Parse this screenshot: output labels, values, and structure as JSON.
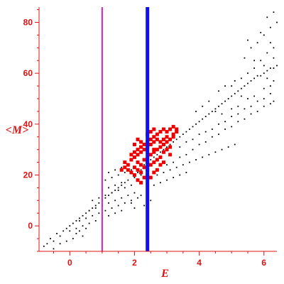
{
  "chart_data": {
    "type": "scatter",
    "title": "",
    "xlabel": "E",
    "ylabel": "<M>",
    "xlim": [
      -0.95,
      6.4
    ],
    "ylim": [
      -10,
      86
    ],
    "x_ticks": [
      "0",
      "2",
      "4",
      "6"
    ],
    "y_ticks": [
      "0",
      "20",
      "40",
      "60",
      "80"
    ],
    "axis_color": "#e01010",
    "grid": false,
    "vertical_lines": [
      {
        "name": "",
        "x": 1.0,
        "color": "#cc22cc",
        "width": "thin"
      },
      {
        "name": "",
        "x": 2.4,
        "color": "#1010ee",
        "width": "thick"
      }
    ],
    "series": [
      {
        "name": "",
        "color": "#000000",
        "marker": "small-dot",
        "points": [
          [
            -0.8,
            -8
          ],
          [
            -0.7,
            -7
          ],
          [
            -0.6,
            -5
          ],
          [
            -0.5,
            -6
          ],
          [
            -0.4,
            -3
          ],
          [
            -0.3,
            -4
          ],
          [
            -0.2,
            -2
          ],
          [
            -0.1,
            -1
          ],
          [
            -0.5,
            -9
          ],
          [
            -0.3,
            -7
          ],
          [
            -0.1,
            -6
          ],
          [
            0.1,
            -5
          ],
          [
            0.2,
            -3
          ],
          [
            0.3,
            -2
          ],
          [
            0.4,
            -4
          ],
          [
            0.5,
            -1
          ],
          [
            0.0,
            0
          ],
          [
            0.1,
            1
          ],
          [
            0.2,
            2
          ],
          [
            0.3,
            3
          ],
          [
            0.4,
            4
          ],
          [
            0.5,
            5
          ],
          [
            0.6,
            6
          ],
          [
            0.7,
            7
          ],
          [
            0.8,
            8
          ],
          [
            0.9,
            9
          ],
          [
            0.0,
            -2
          ],
          [
            0.2,
            -1
          ],
          [
            0.4,
            0
          ],
          [
            0.6,
            1
          ],
          [
            0.8,
            2
          ],
          [
            1.0,
            3
          ],
          [
            1.2,
            4
          ],
          [
            1.4,
            5
          ],
          [
            1.6,
            6
          ],
          [
            0.3,
            2
          ],
          [
            0.5,
            3
          ],
          [
            0.7,
            4
          ],
          [
            0.9,
            5
          ],
          [
            1.1,
            6
          ],
          [
            1.3,
            7
          ],
          [
            1.5,
            8
          ],
          [
            1.7,
            9
          ],
          [
            1.9,
            10
          ],
          [
            0.6,
            6
          ],
          [
            0.8,
            7
          ],
          [
            1.0,
            8
          ],
          [
            1.2,
            9
          ],
          [
            1.4,
            10
          ],
          [
            1.6,
            11
          ],
          [
            1.8,
            12
          ],
          [
            2.0,
            13
          ],
          [
            0.7,
            10
          ],
          [
            0.9,
            11
          ],
          [
            1.1,
            12
          ],
          [
            1.3,
            13
          ],
          [
            1.5,
            14
          ],
          [
            1.7,
            15
          ],
          [
            1.9,
            16
          ],
          [
            1.0,
            14
          ],
          [
            1.2,
            15
          ],
          [
            1.4,
            16
          ],
          [
            1.6,
            17
          ],
          [
            1.8,
            18
          ],
          [
            2.0,
            19
          ],
          [
            2.2,
            20
          ],
          [
            1.1,
            18
          ],
          [
            1.3,
            19
          ],
          [
            1.5,
            20
          ],
          [
            1.7,
            21
          ],
          [
            1.9,
            22
          ],
          [
            1.2,
            21
          ],
          [
            1.4,
            22
          ],
          [
            1.6,
            23
          ],
          [
            1.0,
            10
          ],
          [
            1.1,
            11
          ],
          [
            1.2,
            12
          ],
          [
            1.3,
            13
          ],
          [
            1.4,
            14
          ],
          [
            1.5,
            15
          ],
          [
            1.6,
            16
          ],
          [
            1.7,
            17
          ],
          [
            2.0,
            20
          ],
          [
            2.2,
            22
          ],
          [
            2.4,
            25
          ],
          [
            2.6,
            27
          ],
          [
            2.8,
            29
          ],
          [
            3.0,
            31
          ],
          [
            3.2,
            33
          ],
          [
            3.4,
            35
          ],
          [
            3.6,
            37
          ],
          [
            3.8,
            39
          ],
          [
            4.0,
            41
          ],
          [
            4.2,
            43
          ],
          [
            4.4,
            45
          ],
          [
            4.6,
            47
          ],
          [
            4.8,
            49
          ],
          [
            5.0,
            51
          ],
          [
            5.2,
            53
          ],
          [
            5.4,
            55
          ],
          [
            5.6,
            57
          ],
          [
            5.8,
            59
          ],
          [
            6.0,
            60
          ],
          [
            6.2,
            62
          ],
          [
            6.4,
            63
          ],
          [
            2.1,
            21
          ],
          [
            2.3,
            24
          ],
          [
            2.5,
            26
          ],
          [
            2.7,
            28
          ],
          [
            2.9,
            30
          ],
          [
            3.1,
            32
          ],
          [
            3.3,
            34
          ],
          [
            3.5,
            36
          ],
          [
            3.7,
            38
          ],
          [
            3.9,
            40
          ],
          [
            4.1,
            42
          ],
          [
            4.3,
            44
          ],
          [
            4.5,
            46
          ],
          [
            4.7,
            48
          ],
          [
            4.9,
            50
          ],
          [
            5.1,
            52
          ],
          [
            5.3,
            54
          ],
          [
            5.5,
            56
          ],
          [
            5.7,
            58
          ],
          [
            5.9,
            59
          ],
          [
            6.1,
            61
          ],
          [
            6.3,
            62
          ],
          [
            3.0,
            24
          ],
          [
            3.2,
            25
          ],
          [
            3.4,
            27
          ],
          [
            3.6,
            28
          ],
          [
            3.8,
            30
          ],
          [
            4.0,
            32
          ],
          [
            4.2,
            33
          ],
          [
            4.4,
            35
          ],
          [
            4.6,
            36
          ],
          [
            4.8,
            38
          ],
          [
            5.0,
            39
          ],
          [
            5.2,
            41
          ],
          [
            5.4,
            42
          ],
          [
            5.6,
            44
          ],
          [
            5.8,
            45
          ],
          [
            6.0,
            47
          ],
          [
            6.2,
            48
          ],
          [
            6.3,
            49
          ],
          [
            2.7,
            20
          ],
          [
            2.9,
            21
          ],
          [
            3.1,
            22
          ],
          [
            3.3,
            23
          ],
          [
            3.5,
            24
          ],
          [
            3.7,
            25
          ],
          [
            3.9,
            26
          ],
          [
            4.1,
            27
          ],
          [
            4.3,
            28
          ],
          [
            4.5,
            29
          ],
          [
            4.7,
            30
          ],
          [
            4.9,
            31
          ],
          [
            5.1,
            32
          ],
          [
            2.6,
            16
          ],
          [
            2.8,
            17
          ],
          [
            3.0,
            18
          ],
          [
            3.2,
            19
          ],
          [
            3.4,
            20
          ],
          [
            3.6,
            21
          ],
          [
            3.4,
            31
          ],
          [
            3.6,
            33
          ],
          [
            3.8,
            34
          ],
          [
            4.0,
            36
          ],
          [
            4.2,
            37
          ],
          [
            4.4,
            38
          ],
          [
            4.6,
            40
          ],
          [
            4.8,
            41
          ],
          [
            5.0,
            43
          ],
          [
            5.2,
            44
          ],
          [
            5.4,
            46
          ],
          [
            5.6,
            47
          ],
          [
            5.8,
            49
          ],
          [
            6.0,
            50
          ],
          [
            6.2,
            52
          ],
          [
            4.5,
            45
          ],
          [
            4.7,
            44
          ],
          [
            5.0,
            46
          ],
          [
            5.2,
            47
          ],
          [
            5.5,
            50
          ],
          [
            5.7,
            51
          ],
          [
            6.0,
            54
          ],
          [
            6.2,
            55
          ],
          [
            5.0,
            55
          ],
          [
            5.3,
            58
          ],
          [
            5.5,
            60
          ],
          [
            5.7,
            62
          ],
          [
            5.9,
            65
          ],
          [
            6.1,
            68
          ],
          [
            6.3,
            70
          ],
          [
            5.4,
            66
          ],
          [
            5.6,
            70
          ],
          [
            5.8,
            72
          ],
          [
            6.0,
            75
          ],
          [
            6.2,
            78
          ],
          [
            6.4,
            80
          ],
          [
            6.3,
            84
          ],
          [
            6.1,
            82
          ],
          [
            5.5,
            73
          ],
          [
            5.9,
            76
          ],
          [
            6.2,
            72
          ],
          [
            5.7,
            65
          ],
          [
            6.0,
            63
          ],
          [
            6.3,
            66
          ],
          [
            6.3,
            57
          ],
          [
            6.1,
            58
          ],
          [
            4.6,
            53
          ],
          [
            4.8,
            55
          ],
          [
            5.1,
            57
          ],
          [
            5.3,
            51
          ],
          [
            3.9,
            45
          ],
          [
            4.1,
            47
          ],
          [
            4.3,
            49
          ],
          [
            2.2,
            12
          ],
          [
            2.4,
            14
          ],
          [
            2.5,
            10
          ],
          [
            2.3,
            8
          ],
          [
            2.0,
            7
          ],
          [
            1.9,
            9
          ],
          [
            2.1,
            11
          ]
        ]
      },
      {
        "name": "",
        "color": "#ee0000",
        "marker": "square",
        "points": [
          [
            1.7,
            25
          ],
          [
            1.8,
            24
          ],
          [
            1.9,
            26
          ],
          [
            2.0,
            23
          ],
          [
            2.1,
            25
          ],
          [
            2.2,
            24
          ],
          [
            2.3,
            26
          ],
          [
            2.4,
            25
          ],
          [
            1.8,
            22
          ],
          [
            1.9,
            21
          ],
          [
            2.0,
            20
          ],
          [
            2.1,
            22
          ],
          [
            2.2,
            21
          ],
          [
            2.3,
            23
          ],
          [
            2.4,
            22
          ],
          [
            2.5,
            24
          ],
          [
            2.0,
            27
          ],
          [
            2.1,
            28
          ],
          [
            2.2,
            29
          ],
          [
            2.3,
            30
          ],
          [
            2.4,
            31
          ],
          [
            2.5,
            32
          ],
          [
            2.6,
            33
          ],
          [
            2.7,
            34
          ],
          [
            2.5,
            28
          ],
          [
            2.6,
            29
          ],
          [
            2.7,
            30
          ],
          [
            2.8,
            31
          ],
          [
            2.9,
            32
          ],
          [
            3.0,
            33
          ],
          [
            3.1,
            34
          ],
          [
            3.2,
            35
          ],
          [
            2.6,
            35
          ],
          [
            2.7,
            36
          ],
          [
            2.8,
            37
          ],
          [
            2.9,
            38
          ],
          [
            3.0,
            37
          ],
          [
            3.1,
            38
          ],
          [
            3.2,
            39
          ],
          [
            3.3,
            38
          ],
          [
            2.4,
            33
          ],
          [
            2.5,
            34
          ],
          [
            2.3,
            32
          ],
          [
            2.2,
            31
          ],
          [
            2.1,
            30
          ],
          [
            2.0,
            29
          ],
          [
            1.9,
            28
          ],
          [
            2.6,
            25
          ],
          [
            2.7,
            26
          ],
          [
            2.8,
            24
          ],
          [
            2.9,
            25
          ],
          [
            2.6,
            21
          ],
          [
            2.7,
            22
          ],
          [
            2.3,
            19
          ],
          [
            2.4,
            20
          ],
          [
            1.6,
            22
          ],
          [
            1.7,
            23
          ],
          [
            2.1,
            18
          ],
          [
            2.2,
            17
          ],
          [
            2.5,
            19
          ],
          [
            2.6,
            30
          ],
          [
            2.8,
            27
          ],
          [
            3.1,
            31
          ],
          [
            2.8,
            33
          ],
          [
            2.9,
            34
          ],
          [
            3.0,
            35
          ],
          [
            3.2,
            36
          ],
          [
            3.3,
            37
          ],
          [
            2.5,
            37
          ],
          [
            2.6,
            38
          ],
          [
            2.4,
            36
          ],
          [
            2.9,
            29
          ],
          [
            3.0,
            30
          ],
          [
            3.1,
            28
          ],
          [
            2.0,
            32
          ],
          [
            2.2,
            33
          ],
          [
            2.1,
            34
          ]
        ]
      }
    ]
  }
}
